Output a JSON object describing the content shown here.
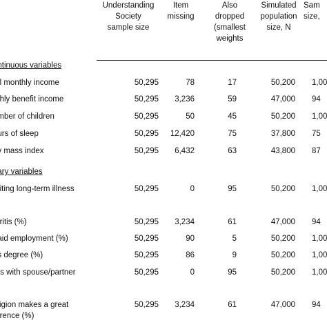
{
  "headers": {
    "sample_size": "Understanding\nSociety\nsample size",
    "item_missing": "Item\nmissing",
    "also_dropped": "Also\ndropped\n(smallest\nweights",
    "simulated": "Simulated\npopulation\nsize, N",
    "sample_cut": "Sam\nsize,"
  },
  "sections": {
    "continuous": "ontinuous variables",
    "binary": "nary variables"
  },
  "rows": [
    {
      "label": "tal monthly income",
      "n": "50,295",
      "missing": "78",
      "dropped": "17",
      "pop": "50,200",
      "samp": "1,00"
    },
    {
      "label": "nthly benefit income",
      "n": "50,295",
      "missing": "3,236",
      "dropped": "59",
      "pop": "47,000",
      "samp": "94"
    },
    {
      "label": "umber of children",
      "n": "50,295",
      "missing": "50",
      "dropped": "45",
      "pop": "50,200",
      "samp": "1,00"
    },
    {
      "label": "ours of sleep",
      "n": "50,295",
      "missing": "12,420",
      "dropped": "75",
      "pop": "37,800",
      "samp": "75"
    },
    {
      "label": "dy mass index",
      "n": "50,295",
      "missing": "6,432",
      "dropped": "63",
      "pop": "43,800",
      "samp": "87"
    },
    {
      "label": "miting long-term illness\n)",
      "n": "50,295",
      "missing": "0",
      "dropped": "95",
      "pop": "50,200",
      "samp": "1,00"
    },
    {
      "label": "thritis (%)",
      "n": "50,295",
      "missing": "3,234",
      "dropped": "61",
      "pop": "47,000",
      "samp": "94"
    },
    {
      "label": "paid employment (%)",
      "n": "50,295",
      "missing": "90",
      "dropped": "5",
      "pop": "50,200",
      "samp": "1,00"
    },
    {
      "label": "as degree (%)",
      "n": "50,295",
      "missing": "86",
      "dropped": "9",
      "pop": "50,200",
      "samp": "1,00"
    },
    {
      "label": "res with spouse/partner",
      "n": "50,295",
      "missing": "0",
      "dropped": "95",
      "pop": "50,200",
      "samp": "1,00"
    },
    {
      "label": "eligion makes a great\nference (%)",
      "n": "50,295",
      "missing": "3,234",
      "dropped": "61",
      "pop": "47,000",
      "samp": "94"
    }
  ]
}
